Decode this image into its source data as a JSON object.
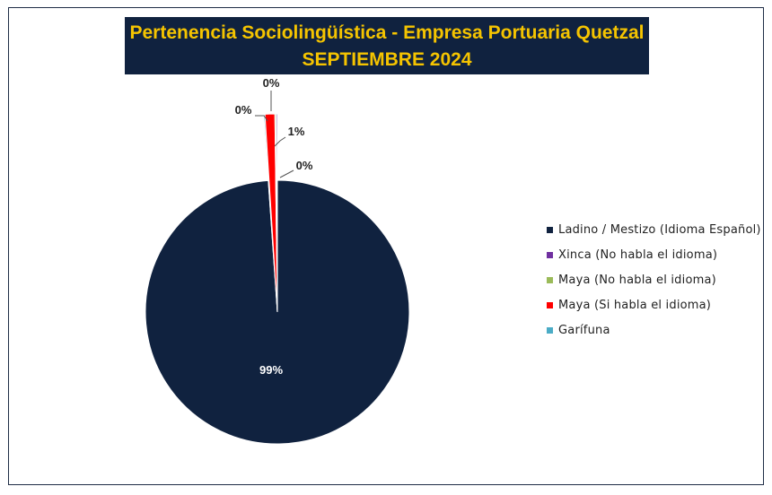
{
  "chart_data": {
    "type": "pie",
    "title": "Pertenencia Sociolingüística - Empresa Portuaria Quetzal",
    "subtitle": "SEPTIEMBRE 2024",
    "categories": [
      "Ladino / Mestizo (Idioma Español)",
      "Xinca (No habla el idioma)",
      "Maya  (No habla el idioma)",
      "Maya  (Si habla el idioma)",
      "Garífuna"
    ],
    "values": [
      98.9,
      0.1,
      0.1,
      0.8,
      0.1
    ],
    "data_labels": [
      "99%",
      "0%",
      "0%",
      "1%",
      "0%"
    ],
    "colors": [
      "#10223f",
      "#7030a0",
      "#9bbb59",
      "#ff0000",
      "#4bacc6"
    ],
    "legend": "right"
  }
}
